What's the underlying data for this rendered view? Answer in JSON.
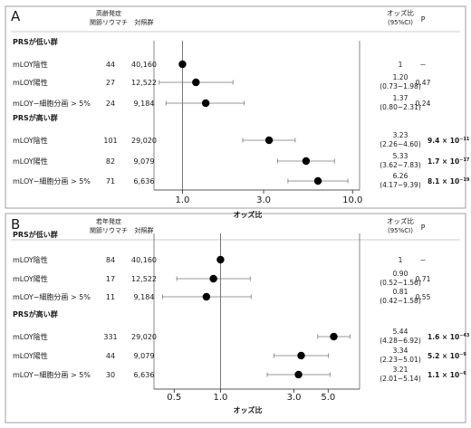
{
  "chart_data": [
    {
      "type": "forest",
      "panel_label": "A",
      "headers": {
        "cases": [
          "高齢発症",
          "関節リウマチ"
        ],
        "controls": "対照群",
        "or": [
          "オッズ比",
          "(95%CI)"
        ],
        "p": "P"
      },
      "x_scale": "log",
      "xlim": [
        0.68,
        11.0
      ],
      "x_ticks": [
        {
          "v": 1.0,
          "label": "1.0"
        },
        {
          "v": 3.0,
          "label": "3.0"
        },
        {
          "v": 10.0,
          "label": "10.0"
        }
      ],
      "xlabel": "オッズ比",
      "reference_line": 1.0,
      "groups": [
        {
          "title": "PRSが低い群",
          "rows": [
            {
              "label": "mLOY陰性",
              "cases": "44",
              "controls": "40,160",
              "or": 1.0,
              "ci": null,
              "or_text": "1",
              "ci_text": "",
              "p": "－"
            },
            {
              "label": "mLOY陽性",
              "cases": "27",
              "controls": "12,522",
              "or": 1.2,
              "ci": [
                0.73,
                1.98
              ],
              "or_text": "1.20",
              "ci_text": "(0.73−1.98)",
              "p": "0.47"
            },
            {
              "label": "mLOY−細胞分画 > 5%",
              "cases": "24",
              "controls": "9,184",
              "or": 1.37,
              "ci": [
                0.8,
                2.31
              ],
              "or_text": "1.37",
              "ci_text": "(0.80−2.31)",
              "p": "0.24"
            }
          ]
        },
        {
          "title": "PRSが高い群",
          "rows": [
            {
              "label": "mLOY陰性",
              "cases": "101",
              "controls": "29,020",
              "or": 3.23,
              "ci": [
                2.26,
                4.6
              ],
              "or_text": "3.23",
              "ci_text": "(2.26−4.60)",
              "p_base": "9.4 × 10",
              "p_exp": "−11"
            },
            {
              "label": "mLOY陽性",
              "cases": "82",
              "controls": "9,079",
              "or": 5.33,
              "ci": [
                3.62,
                7.83
              ],
              "or_text": "5.33",
              "ci_text": "(3.62−7.83)",
              "p_base": "1.7 × 10",
              "p_exp": "−17"
            },
            {
              "label": "mLOY−細胞分画 > 5%",
              "cases": "71",
              "controls": "6,636",
              "or": 6.26,
              "ci": [
                4.17,
                9.39
              ],
              "or_text": "6.26",
              "ci_text": "(4.17−9.39)",
              "p_base": "8.1 × 10",
              "p_exp": "−19"
            }
          ]
        }
      ]
    },
    {
      "type": "forest",
      "panel_label": "B",
      "headers": {
        "cases": [
          "若年発症",
          "関節リウマチ"
        ],
        "controls": "対照群",
        "or": [
          "オッズ比",
          "(95%CI)"
        ],
        "p": "P"
      },
      "x_scale": "log",
      "xlim": [
        0.37,
        8.0
      ],
      "x_ticks": [
        {
          "v": 0.5,
          "label": "0.5"
        },
        {
          "v": 1.0,
          "label": "1.0"
        },
        {
          "v": 3.0,
          "label": "3.0"
        },
        {
          "v": 5.0,
          "label": "5.0"
        }
      ],
      "xlabel": "オッズ比",
      "reference_line": 1.0,
      "groups": [
        {
          "title": "PRSが低い群",
          "rows": [
            {
              "label": "mLOY陰性",
              "cases": "84",
              "controls": "40,160",
              "or": 1.0,
              "ci": null,
              "or_text": "1",
              "ci_text": "",
              "p": "－"
            },
            {
              "label": "mLOY陽性",
              "cases": "17",
              "controls": "12,522",
              "or": 0.9,
              "ci": [
                0.52,
                1.56
              ],
              "or_text": "0.90",
              "ci_text": "(0.52−1.56)",
              "p": "0.71"
            },
            {
              "label": "mLOY−細胞分画 > 5%",
              "cases": "11",
              "controls": "9,184",
              "or": 0.81,
              "ci": [
                0.42,
                1.58
              ],
              "or_text": "0.81",
              "ci_text": "(0.42−1.58)",
              "p": "0.55"
            }
          ]
        },
        {
          "title": "PRSが高い群",
          "rows": [
            {
              "label": "mLOY陰性",
              "cases": "331",
              "controls": "29,020",
              "or": 5.44,
              "ci": [
                4.28,
                6.92
              ],
              "or_text": "5.44",
              "ci_text": "(4.28−6.92)",
              "p_base": "1.6 × 10",
              "p_exp": "−43"
            },
            {
              "label": "mLOY陽性",
              "cases": "44",
              "controls": "9,079",
              "or": 3.34,
              "ci": [
                2.23,
                5.01
              ],
              "or_text": "3.34",
              "ci_text": "(2.23−5.01)",
              "p_base": "5.2 × 10",
              "p_exp": "−9"
            },
            {
              "label": "mLOY−細胞分画 > 5%",
              "cases": "30",
              "controls": "6,636",
              "or": 3.21,
              "ci": [
                2.01,
                5.14
              ],
              "or_text": "3.21",
              "ci_text": "(2.01−5.14)",
              "p_base": "1.1 × 10",
              "p_exp": "−6"
            }
          ]
        }
      ]
    }
  ]
}
